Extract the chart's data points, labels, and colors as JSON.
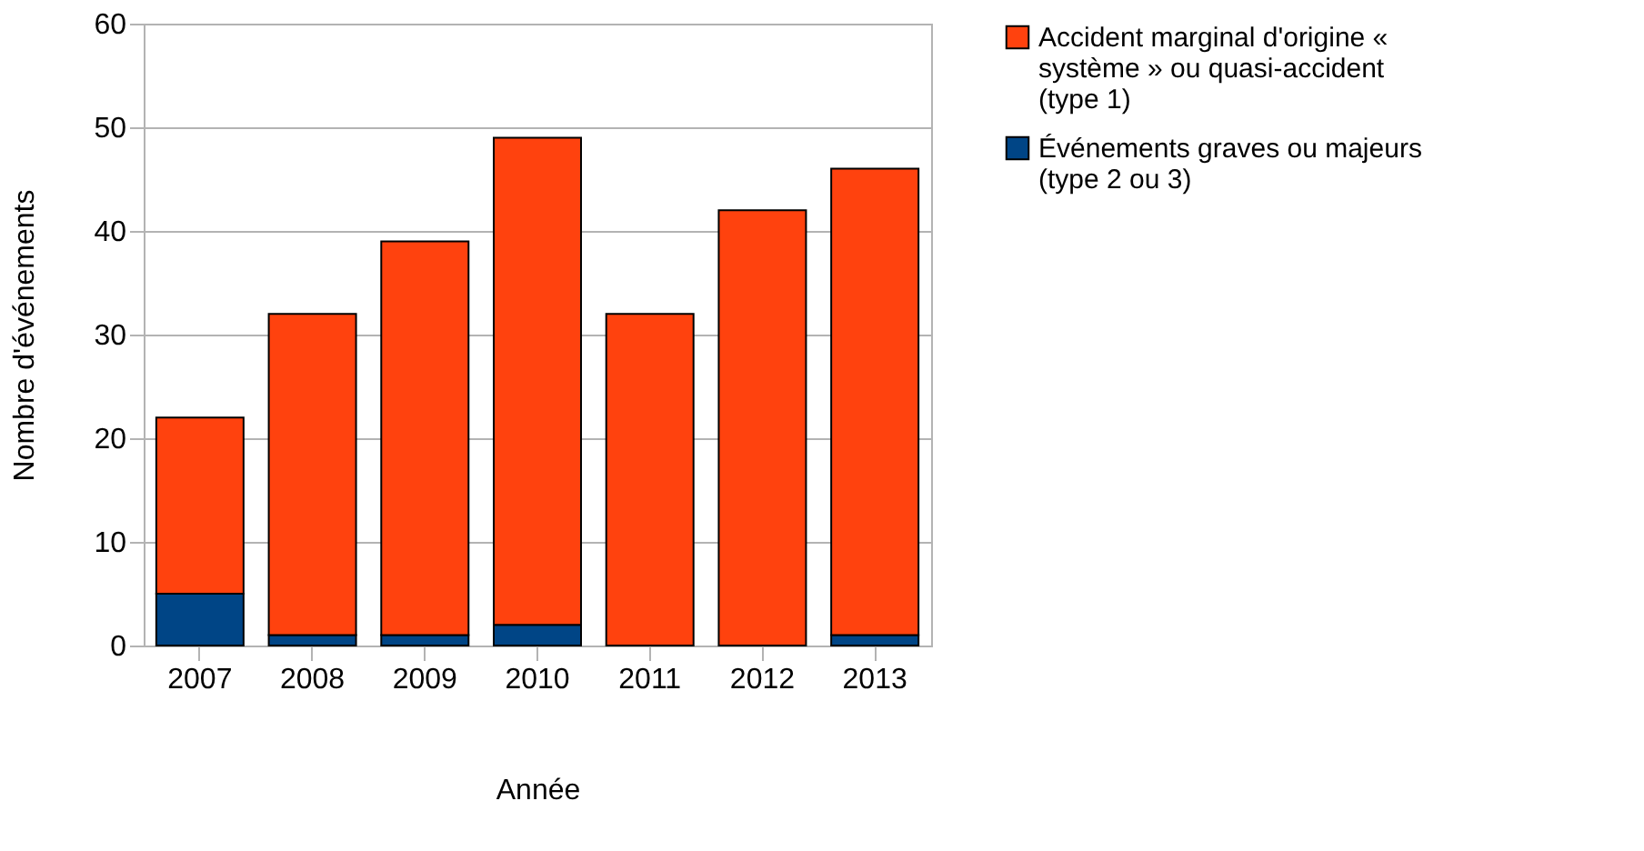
{
  "chart_data": {
    "type": "bar",
    "stacked": true,
    "xlabel": "Année",
    "ylabel": "Nombre d'événements",
    "categories": [
      "2007",
      "2008",
      "2009",
      "2010",
      "2011",
      "2012",
      "2013"
    ],
    "series": [
      {
        "name": "Événements graves ou majeurs (type 2 ou 3)",
        "color": "#004586",
        "values": [
          5,
          1,
          1,
          2,
          0,
          0,
          1
        ]
      },
      {
        "name": "Accident marginal d'origine « système » ou quasi-accident (type 1)",
        "color": "#ff420e",
        "values": [
          17,
          31,
          38,
          47,
          32,
          42,
          45
        ]
      }
    ],
    "ylim": [
      0,
      60
    ],
    "yticks": [
      0,
      10,
      20,
      30,
      40,
      50,
      60
    ],
    "grid": "y",
    "legend": "right"
  }
}
